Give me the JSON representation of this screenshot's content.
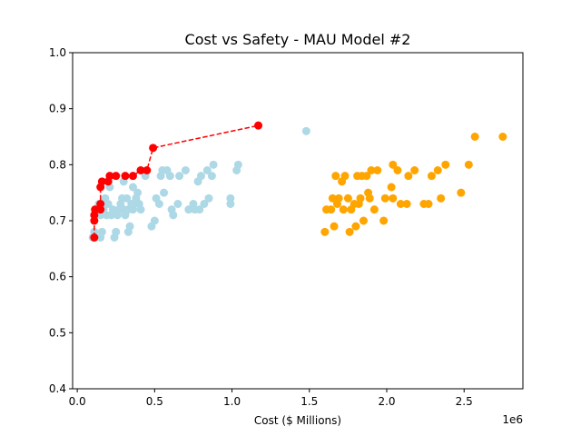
{
  "chart_data": {
    "type": "scatter",
    "title": "Cost vs Safety - MAU Model #2",
    "xlabel": "Cost ($ Millions)",
    "ylabel": "",
    "x_offset_label": "1e6",
    "xlim": [
      -30000,
      2880000
    ],
    "ylim": [
      0.4,
      1.0
    ],
    "xticks": [
      0.0,
      0.5,
      1.0,
      1.5,
      2.0,
      2.5
    ],
    "yticks": [
      0.4,
      0.5,
      0.6,
      0.7,
      0.8,
      0.9,
      1.0
    ],
    "grid": false,
    "legend": "none",
    "series": [
      {
        "color": "#add8e6",
        "kind": "scatter",
        "points": [
          [
            100000,
            0.67
          ],
          [
            110000,
            0.68
          ],
          [
            120000,
            0.71
          ],
          [
            130000,
            0.72
          ],
          [
            140000,
            0.73
          ],
          [
            150000,
            0.71
          ],
          [
            150000,
            0.67
          ],
          [
            160000,
            0.68
          ],
          [
            170000,
            0.72
          ],
          [
            180000,
            0.74
          ],
          [
            190000,
            0.71
          ],
          [
            200000,
            0.73
          ],
          [
            210000,
            0.76
          ],
          [
            220000,
            0.71
          ],
          [
            230000,
            0.72
          ],
          [
            240000,
            0.67
          ],
          [
            250000,
            0.68
          ],
          [
            260000,
            0.71
          ],
          [
            270000,
            0.72
          ],
          [
            280000,
            0.73
          ],
          [
            290000,
            0.74
          ],
          [
            300000,
            0.72
          ],
          [
            310000,
            0.71
          ],
          [
            320000,
            0.74
          ],
          [
            330000,
            0.72
          ],
          [
            340000,
            0.69
          ],
          [
            350000,
            0.73
          ],
          [
            360000,
            0.72
          ],
          [
            370000,
            0.73
          ],
          [
            380000,
            0.74
          ],
          [
            390000,
            0.75
          ],
          [
            400000,
            0.73
          ],
          [
            410000,
            0.72
          ],
          [
            300000,
            0.77
          ],
          [
            330000,
            0.68
          ],
          [
            360000,
            0.76
          ],
          [
            440000,
            0.78
          ],
          [
            480000,
            0.69
          ],
          [
            500000,
            0.7
          ],
          [
            510000,
            0.74
          ],
          [
            530000,
            0.73
          ],
          [
            540000,
            0.78
          ],
          [
            550000,
            0.79
          ],
          [
            560000,
            0.75
          ],
          [
            580000,
            0.79
          ],
          [
            600000,
            0.78
          ],
          [
            610000,
            0.72
          ],
          [
            620000,
            0.71
          ],
          [
            650000,
            0.73
          ],
          [
            660000,
            0.78
          ],
          [
            700000,
            0.79
          ],
          [
            720000,
            0.72
          ],
          [
            750000,
            0.73
          ],
          [
            760000,
            0.72
          ],
          [
            780000,
            0.77
          ],
          [
            790000,
            0.72
          ],
          [
            800000,
            0.78
          ],
          [
            820000,
            0.73
          ],
          [
            840000,
            0.79
          ],
          [
            850000,
            0.74
          ],
          [
            870000,
            0.78
          ],
          [
            880000,
            0.8
          ],
          [
            990000,
            0.74
          ],
          [
            990000,
            0.73
          ],
          [
            1030000,
            0.79
          ],
          [
            1040000,
            0.8
          ],
          [
            1480000,
            0.86
          ]
        ]
      },
      {
        "color": "#ffa500",
        "kind": "scatter",
        "points": [
          [
            1600000,
            0.68
          ],
          [
            1610000,
            0.72
          ],
          [
            1640000,
            0.72
          ],
          [
            1650000,
            0.74
          ],
          [
            1660000,
            0.69
          ],
          [
            1670000,
            0.78
          ],
          [
            1680000,
            0.73
          ],
          [
            1690000,
            0.74
          ],
          [
            1710000,
            0.77
          ],
          [
            1720000,
            0.72
          ],
          [
            1730000,
            0.78
          ],
          [
            1750000,
            0.74
          ],
          [
            1760000,
            0.68
          ],
          [
            1770000,
            0.72
          ],
          [
            1790000,
            0.73
          ],
          [
            1800000,
            0.69
          ],
          [
            1810000,
            0.78
          ],
          [
            1820000,
            0.73
          ],
          [
            1830000,
            0.74
          ],
          [
            1840000,
            0.78
          ],
          [
            1850000,
            0.7
          ],
          [
            1870000,
            0.78
          ],
          [
            1880000,
            0.75
          ],
          [
            1890000,
            0.74
          ],
          [
            1900000,
            0.79
          ],
          [
            1920000,
            0.72
          ],
          [
            1940000,
            0.79
          ],
          [
            1980000,
            0.7
          ],
          [
            1990000,
            0.74
          ],
          [
            2030000,
            0.76
          ],
          [
            2040000,
            0.8
          ],
          [
            2070000,
            0.79
          ],
          [
            2090000,
            0.73
          ],
          [
            2130000,
            0.73
          ],
          [
            2140000,
            0.78
          ],
          [
            2180000,
            0.79
          ],
          [
            2240000,
            0.73
          ],
          [
            2270000,
            0.73
          ],
          [
            2290000,
            0.78
          ],
          [
            2330000,
            0.79
          ],
          [
            2350000,
            0.74
          ],
          [
            2380000,
            0.8
          ],
          [
            2480000,
            0.75
          ],
          [
            2530000,
            0.8
          ],
          [
            2570000,
            0.85
          ],
          [
            2750000,
            0.85
          ],
          [
            2040000,
            0.74
          ]
        ]
      },
      {
        "color": "#ff0000",
        "kind": "pareto",
        "points": [
          [
            110000,
            0.67
          ],
          [
            110000,
            0.7
          ],
          [
            110000,
            0.71
          ],
          [
            115000,
            0.72
          ],
          [
            150000,
            0.72
          ],
          [
            150000,
            0.73
          ],
          [
            150000,
            0.76
          ],
          [
            160000,
            0.77
          ],
          [
            200000,
            0.77
          ],
          [
            210000,
            0.78
          ],
          [
            250000,
            0.78
          ],
          [
            310000,
            0.78
          ],
          [
            360000,
            0.78
          ],
          [
            410000,
            0.79
          ],
          [
            450000,
            0.79
          ],
          [
            490000,
            0.83
          ],
          [
            1170000,
            0.87
          ]
        ]
      }
    ]
  }
}
